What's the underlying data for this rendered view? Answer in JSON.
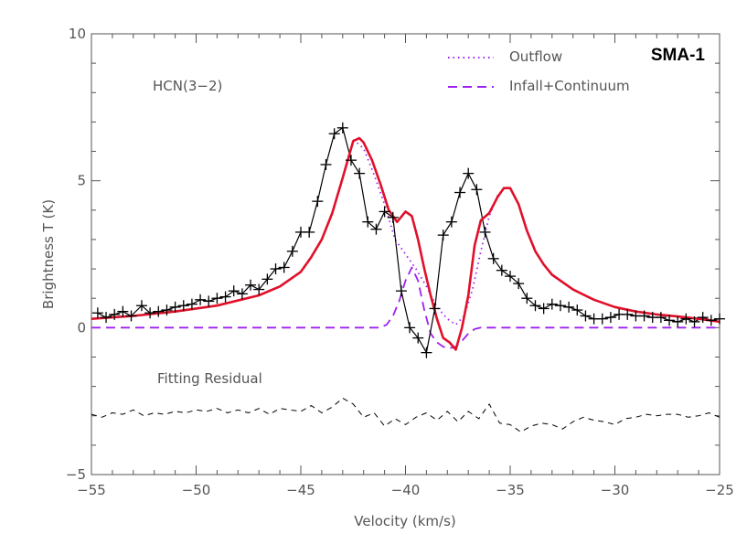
{
  "chart_data": {
    "type": "line",
    "xlabel": "Velocity (km/s)",
    "ylabel": "Brightness T (K)",
    "xlim": [
      -55,
      -25
    ],
    "ylim": [
      -5,
      10
    ],
    "x_ticks": [
      -55,
      -50,
      -45,
      -40,
      -35,
      -30,
      -25
    ],
    "y_ticks": [
      -5,
      0,
      5,
      10
    ],
    "grid": false,
    "legend_position": "top-right",
    "badge": "SMA-1",
    "line_label": "HCN(3−2)",
    "residual_label": "Fitting Residual",
    "colors": {
      "data": "#000000",
      "fit": "#e0102a",
      "outflow": "#a020f0",
      "infall": "#a020f0",
      "residual": "#000000",
      "axes": "#555555"
    },
    "series": [
      {
        "name": "observed",
        "style": "black line with plus markers",
        "x": [
          -54.7,
          -54.3,
          -53.9,
          -53.5,
          -53.1,
          -52.6,
          -52.2,
          -51.8,
          -51.4,
          -51.0,
          -50.6,
          -50.2,
          -49.8,
          -49.4,
          -49.0,
          -48.6,
          -48.2,
          -47.8,
          -47.4,
          -47.0,
          -46.6,
          -46.2,
          -45.8,
          -45.4,
          -45.0,
          -44.6,
          -44.2,
          -43.8,
          -43.4,
          -43.0,
          -42.6,
          -42.2,
          -41.8,
          -41.4,
          -41.0,
          -40.6,
          -40.2,
          -39.8,
          -39.4,
          -39.0,
          -38.6,
          -38.2,
          -37.8,
          -37.4,
          -37.0,
          -36.6,
          -36.2,
          -35.8,
          -35.4,
          -35.0,
          -34.6,
          -34.2,
          -33.8,
          -33.4,
          -33.0,
          -32.6,
          -32.2,
          -31.8,
          -31.4,
          -31.0,
          -30.6,
          -30.2,
          -29.8,
          -29.4,
          -29.0,
          -28.6,
          -28.2,
          -27.8,
          -27.4,
          -27.0,
          -26.6,
          -26.2,
          -25.8,
          -25.4,
          -25.0
        ],
        "y": [
          0.5,
          0.35,
          0.45,
          0.55,
          0.4,
          0.75,
          0.5,
          0.55,
          0.6,
          0.7,
          0.75,
          0.8,
          0.95,
          0.9,
          1.0,
          1.05,
          1.25,
          1.15,
          1.45,
          1.3,
          1.65,
          2.0,
          2.05,
          2.6,
          3.25,
          3.25,
          4.3,
          5.55,
          6.6,
          6.8,
          5.7,
          5.25,
          3.6,
          3.35,
          3.95,
          3.75,
          1.25,
          0.0,
          -0.35,
          -0.85,
          0.65,
          3.15,
          3.6,
          4.6,
          5.25,
          4.7,
          3.25,
          2.35,
          1.95,
          1.75,
          1.5,
          1.0,
          0.75,
          0.65,
          0.8,
          0.75,
          0.7,
          0.6,
          0.4,
          0.3,
          0.3,
          0.35,
          0.45,
          0.45,
          0.4,
          0.4,
          0.35,
          0.35,
          0.25,
          0.2,
          0.3,
          0.2,
          0.35,
          0.25,
          0.3
        ]
      },
      {
        "name": "fit",
        "style": "red thick line",
        "x": [
          -55,
          -53,
          -51,
          -49,
          -47,
          -46,
          -45,
          -44.5,
          -44,
          -43.5,
          -43,
          -42.5,
          -42.2,
          -42,
          -41.6,
          -41.2,
          -40.8,
          -40.4,
          -40.0,
          -39.7,
          -39.4,
          -39.1,
          -38.8,
          -38.5,
          -38.2,
          -37.9,
          -37.6,
          -37.3,
          -37.0,
          -36.7,
          -36.4,
          -36.0,
          -35.6,
          -35.3,
          -35.0,
          -34.6,
          -34.2,
          -33.8,
          -33.4,
          -33.0,
          -32.0,
          -31.0,
          -30.0,
          -29.0,
          -28.0,
          -27.0,
          -26.0,
          -25.0
        ],
        "y": [
          0.3,
          0.4,
          0.55,
          0.75,
          1.1,
          1.4,
          1.9,
          2.4,
          3.0,
          3.9,
          5.1,
          6.35,
          6.45,
          6.3,
          5.7,
          4.9,
          4.0,
          3.6,
          3.95,
          3.8,
          3.0,
          2.0,
          1.1,
          0.3,
          -0.35,
          -0.5,
          -0.75,
          0.0,
          1.1,
          2.8,
          3.65,
          3.9,
          4.45,
          4.75,
          4.75,
          4.2,
          3.3,
          2.6,
          2.15,
          1.8,
          1.3,
          0.95,
          0.7,
          0.55,
          0.45,
          0.38,
          0.3,
          0.2
        ]
      },
      {
        "name": "Outflow",
        "style": "purple dotted",
        "x": [
          -42.5,
          -42,
          -41.5,
          -41,
          -40.5,
          -40,
          -39.5,
          -39,
          -38.5,
          -38,
          -37.6,
          -37.2,
          -36.8,
          -36.4,
          -36,
          -35.6
        ],
        "y": [
          6.4,
          6.1,
          5.2,
          4.2,
          3.0,
          2.5,
          2.0,
          1.4,
          0.7,
          0.3,
          0.1,
          0.4,
          1.3,
          2.6,
          3.8,
          4.5
        ]
      },
      {
        "name": "Infall+Continuum",
        "style": "purple dashed",
        "x": [
          -55,
          -41.2,
          -40.9,
          -40.6,
          -40.3,
          -40.0,
          -39.7,
          -39.4,
          -39.1,
          -38.8,
          -38.5,
          -38.2,
          -37.9,
          -37.6,
          -37.3,
          -37.0,
          -36.7,
          -36.4,
          -25
        ],
        "y": [
          0.0,
          0.0,
          0.1,
          0.4,
          0.9,
          1.6,
          2.05,
          1.6,
          0.6,
          -0.2,
          -0.5,
          -0.65,
          -0.7,
          -0.65,
          -0.45,
          -0.2,
          -0.05,
          0.0,
          0.0
        ]
      },
      {
        "name": "residual",
        "style": "black dashed",
        "x": [
          -55,
          -54.5,
          -54,
          -53.5,
          -53,
          -52.5,
          -52,
          -51.5,
          -51,
          -50.5,
          -50,
          -49.5,
          -49,
          -48.5,
          -48,
          -47.5,
          -47,
          -46.5,
          -46,
          -45.5,
          -45,
          -44.5,
          -44,
          -43.5,
          -43,
          -42.5,
          -42,
          -41.5,
          -41,
          -40.5,
          -40,
          -39.5,
          -39,
          -38.5,
          -38,
          -37.5,
          -37,
          -36.5,
          -36,
          -35.5,
          -35,
          -34.5,
          -34,
          -33.5,
          -33,
          -32.5,
          -32,
          -31.5,
          -31,
          -30.5,
          -30,
          -29.5,
          -29,
          -28.5,
          -28,
          -27.5,
          -27,
          -26.5,
          -26,
          -25.5,
          -25
        ],
        "y": [
          -2.95,
          -3.05,
          -2.9,
          -2.95,
          -2.8,
          -3.0,
          -2.9,
          -2.95,
          -2.85,
          -2.9,
          -2.8,
          -2.85,
          -2.75,
          -2.9,
          -2.8,
          -2.9,
          -2.75,
          -2.95,
          -2.75,
          -2.8,
          -2.85,
          -2.65,
          -2.9,
          -2.7,
          -2.4,
          -2.6,
          -3.05,
          -2.9,
          -3.35,
          -3.1,
          -3.3,
          -3.05,
          -2.9,
          -3.15,
          -2.85,
          -3.2,
          -2.85,
          -3.1,
          -2.6,
          -3.25,
          -3.3,
          -3.55,
          -3.35,
          -3.25,
          -3.3,
          -3.45,
          -3.2,
          -3.05,
          -3.15,
          -3.2,
          -3.3,
          -3.1,
          -3.05,
          -2.95,
          -3.0,
          -2.95,
          -2.95,
          -3.05,
          -3.0,
          -2.9,
          -3.05
        ]
      }
    ]
  }
}
